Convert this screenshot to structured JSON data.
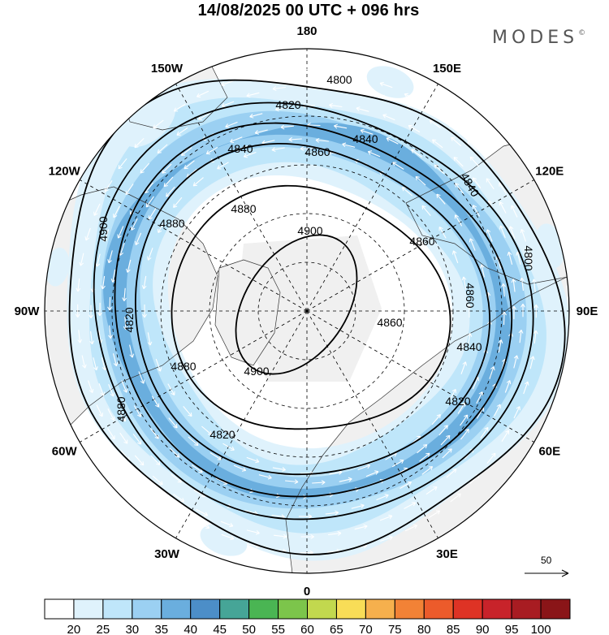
{
  "header": {
    "title": "14/08/2025  00 UTC  + 096 hrs",
    "brand": "MODES",
    "brand_mark": "©"
  },
  "map": {
    "projection": "north-polar-stereographic",
    "longitude_labels": [
      "180",
      "150E",
      "120E",
      "90E",
      "60E",
      "30E",
      "0",
      "30W",
      "60W",
      "90W",
      "120W",
      "150W"
    ],
    "contour_variable": "geopotential height (gpm)",
    "contour_levels": [
      4800,
      4820,
      4840,
      4860,
      4880,
      4900
    ],
    "contour_labels": [
      "4800",
      "4820",
      "4840",
      "4860",
      "4880",
      "4900",
      "4820",
      "4840",
      "4860",
      "4880",
      "4900",
      "4800",
      "4820",
      "4840",
      "4860",
      "4880",
      "4820",
      "4840",
      "4860",
      "4880",
      "4900"
    ],
    "shading_variable": "wind speed",
    "reference_vector_label": "50"
  },
  "colorbar": {
    "ticks": [
      "20",
      "25",
      "30",
      "35",
      "40",
      "45",
      "50",
      "55",
      "60",
      "65",
      "70",
      "75",
      "80",
      "85",
      "90",
      "95",
      "100"
    ],
    "colors": [
      "#ffffff",
      "#dff2fc",
      "#bfe6fa",
      "#9bd0f2",
      "#6aaede",
      "#4c8ec8",
      "#46a597",
      "#4ab553",
      "#7cc54b",
      "#c2d84e",
      "#f8dd57",
      "#f6b04d",
      "#f28236",
      "#ec5b2b",
      "#de3325",
      "#c8232a",
      "#a81c22",
      "#8a1518"
    ]
  }
}
